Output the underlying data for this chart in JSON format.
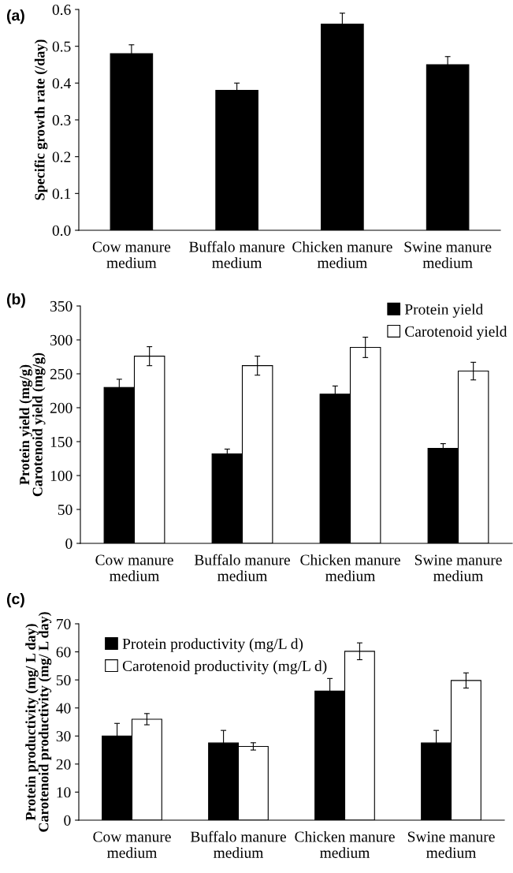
{
  "chart_data": [
    {
      "type": "bar",
      "title": "(a)",
      "ylabel": "Specific growth rate (/day)",
      "categories": [
        "Cow manure\nmedium",
        "Buffalo manure\nmedium",
        "Chicken manure\nmedium",
        "Swine manure\nmedium"
      ],
      "series": [
        {
          "color": "#000000",
          "values": [
            0.48,
            0.38,
            0.56,
            0.45
          ],
          "errors": [
            0.024,
            0.02,
            0.03,
            0.022
          ]
        }
      ],
      "ylim": [
        0,
        0.6
      ],
      "yticks": [
        {
          "value": 0,
          "label": "0.0"
        },
        0.1,
        0.2,
        0.3,
        0.4,
        0.5,
        0.6
      ],
      "grid": false,
      "legend": false
    },
    {
      "type": "bar",
      "title": "(b)",
      "ylabel": "Protein yield (mg/g)\nCarotenoid yield (mg/g)",
      "categories": [
        "Cow manure\nmedium",
        "Buffalo manure\nmedium",
        "Chicken manure\nmedium",
        "Swine manure\nmedium"
      ],
      "series": [
        {
          "name": "Protein yield",
          "color": "#000000",
          "values": [
            230,
            132,
            220,
            140
          ],
          "errors": [
            12,
            7,
            12,
            7
          ]
        },
        {
          "name": "Carotenoid yield",
          "color": "#ffffff",
          "values": [
            276,
            262,
            289,
            254
          ],
          "errors": [
            14,
            14,
            15,
            13
          ]
        }
      ],
      "ylim": [
        0,
        350
      ],
      "yticks": [
        0,
        50,
        100,
        150,
        200,
        250,
        300,
        350
      ],
      "grid": false,
      "legend": "top right"
    },
    {
      "type": "bar",
      "title": "(c)",
      "ylabel": "Protein productivity (mg/ L day)\nCarotenoid productivity (mg/ L day)",
      "categories": [
        "Cow manure\nmedium",
        "Buffalo manure\nmedium",
        "Chicken manure\nmedium",
        "Swine manure\nmedium"
      ],
      "series": [
        {
          "name": "Protein productivity (mg/L d)",
          "color": "#000000",
          "values": [
            30,
            27.5,
            46,
            27.5
          ],
          "errors": [
            4.5,
            4.5,
            4.5,
            4.5
          ]
        },
        {
          "name": "Carotenoid productivity (mg/L d)",
          "color": "#ffffff",
          "values": [
            36,
            26.3,
            60.2,
            49.8
          ],
          "errors": [
            2,
            1.3,
            3,
            2.7
          ]
        }
      ],
      "ylim": [
        0,
        70
      ],
      "yticks": [
        0,
        10,
        20,
        30,
        40,
        50,
        60,
        70
      ],
      "grid": false,
      "legend": "top left"
    }
  ]
}
